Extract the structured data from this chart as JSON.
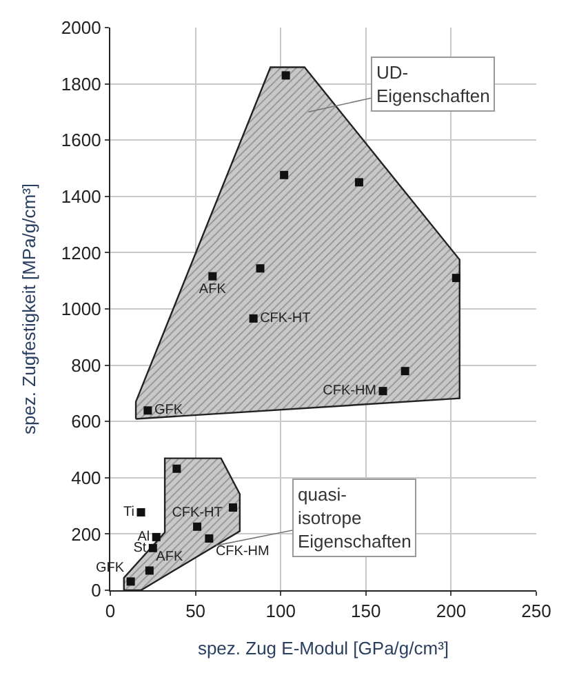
{
  "chart_data": {
    "type": "scatter",
    "xlabel": "spez. Zug E-Modul [GPa/g/cm³]",
    "ylabel": "spez. Zugfestigkeit [MPa/g/cm³]",
    "xlim": [
      0,
      250
    ],
    "xticks": [
      0,
      50,
      100,
      150,
      200,
      250
    ],
    "ylim": [
      0,
      2000
    ],
    "yticks": [
      0,
      200,
      400,
      600,
      800,
      1000,
      1200,
      1400,
      1600,
      1800,
      2000
    ],
    "grid": true,
    "series": [
      {
        "type": "area",
        "color": "#c8c8c8",
        "x": [
          15,
          15,
          94,
          114,
          205,
          205,
          15
        ],
        "values": [
          609,
          670,
          1859,
          1859,
          1175,
          682,
          609
        ]
      },
      {
        "type": "area",
        "color": "#c8c8c8",
        "x": [
          8,
          18,
          76,
          76,
          65,
          32,
          32,
          8,
          8
        ],
        "values": [
          0,
          0,
          210,
          342,
          469,
          469,
          206,
          44,
          0
        ]
      },
      {
        "marker": "square",
        "color": "#111111",
        "x": [
          22,
          60,
          84,
          88,
          102,
          103,
          146,
          203,
          173,
          160,
          12,
          23,
          25,
          27,
          18,
          51,
          58,
          72,
          39
        ],
        "values": [
          639,
          1116,
          966,
          1144,
          1476,
          1830,
          1450,
          1110,
          779,
          708,
          31,
          70,
          150,
          189,
          277,
          226,
          184,
          294,
          432
        ],
        "value_labels": [
          "GFK",
          "AFK",
          "CFK-HT",
          null,
          null,
          null,
          null,
          null,
          null,
          "CFK-HM",
          "GFK",
          "AFK",
          "St",
          "Al",
          "Ti",
          "CFK-HT",
          "CFK-HM",
          null,
          null
        ]
      }
    ],
    "annotations": [
      "UD-Eigenschaften",
      {
        "text": "quasi-isotrope Eigenschaften",
        "x": 62,
        "y": 159
      }
    ]
  }
}
